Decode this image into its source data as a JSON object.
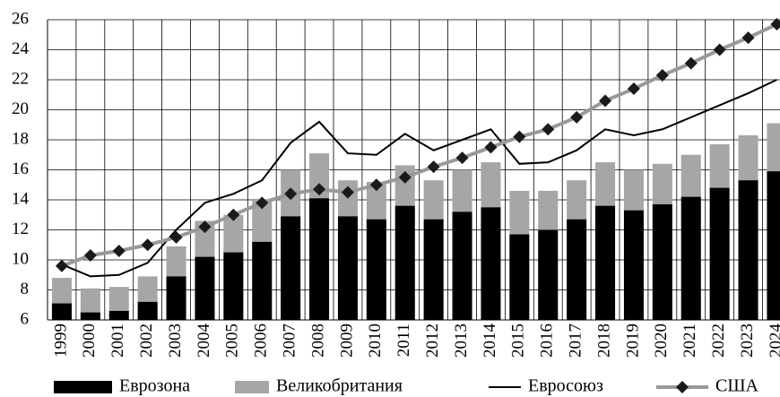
{
  "chart_data": {
    "type": "bar",
    "categories": [
      "1999",
      "2000",
      "2001",
      "2002",
      "2003",
      "2004",
      "2005",
      "2006",
      "2007",
      "2008",
      "2009",
      "2010",
      "2011",
      "2012",
      "2013",
      "2014",
      "2015",
      "2016",
      "2017",
      "2018",
      "2019",
      "2020",
      "2021",
      "2022",
      "2023",
      "2024"
    ],
    "series": [
      {
        "name": "Великобритания",
        "type": "bar",
        "color": "#a6a6a6",
        "values": [
          8.8,
          8.1,
          8.2,
          8.9,
          10.9,
          12.6,
          13.0,
          14.0,
          16.0,
          17.1,
          15.3,
          15.2,
          16.3,
          15.3,
          16.0,
          16.5,
          14.6,
          14.6,
          15.3,
          16.5,
          16.0,
          16.4,
          17.0,
          17.7,
          18.3,
          19.1
        ]
      },
      {
        "name": "Еврозона",
        "type": "bar",
        "color": "#000000",
        "values": [
          7.1,
          6.5,
          6.6,
          7.2,
          8.9,
          10.2,
          10.5,
          11.2,
          12.9,
          14.1,
          12.9,
          12.7,
          13.6,
          12.7,
          13.2,
          13.5,
          11.7,
          12.0,
          12.7,
          13.6,
          13.3,
          13.7,
          14.2,
          14.8,
          15.3,
          15.9
        ]
      },
      {
        "name": "Евросоюз",
        "type": "line",
        "color": "#000000",
        "values": [
          9.7,
          8.9,
          9.0,
          9.8,
          12.0,
          13.8,
          14.4,
          15.3,
          17.8,
          19.2,
          17.1,
          17.0,
          18.4,
          17.3,
          18.0,
          18.7,
          16.4,
          16.5,
          17.3,
          18.7,
          18.3,
          18.7,
          19.5,
          20.3,
          21.1,
          22.0
        ]
      },
      {
        "name": "США",
        "type": "line",
        "color": "#999999",
        "marker": "diamond",
        "marker_color": "#1a1a1a",
        "values": [
          9.6,
          10.3,
          10.6,
          11.0,
          11.5,
          12.2,
          13.0,
          13.8,
          14.4,
          14.7,
          14.5,
          15.0,
          15.5,
          16.2,
          16.8,
          17.5,
          18.2,
          18.7,
          19.5,
          20.6,
          21.4,
          22.3,
          23.1,
          24.0,
          24.8,
          25.7
        ]
      }
    ],
    "legend_order": [
      1,
      0,
      2,
      3
    ],
    "ylim": [
      6,
      26
    ],
    "yticks": [
      6,
      8,
      10,
      12,
      14,
      16,
      18,
      20,
      22,
      24,
      26
    ],
    "grid": true
  }
}
